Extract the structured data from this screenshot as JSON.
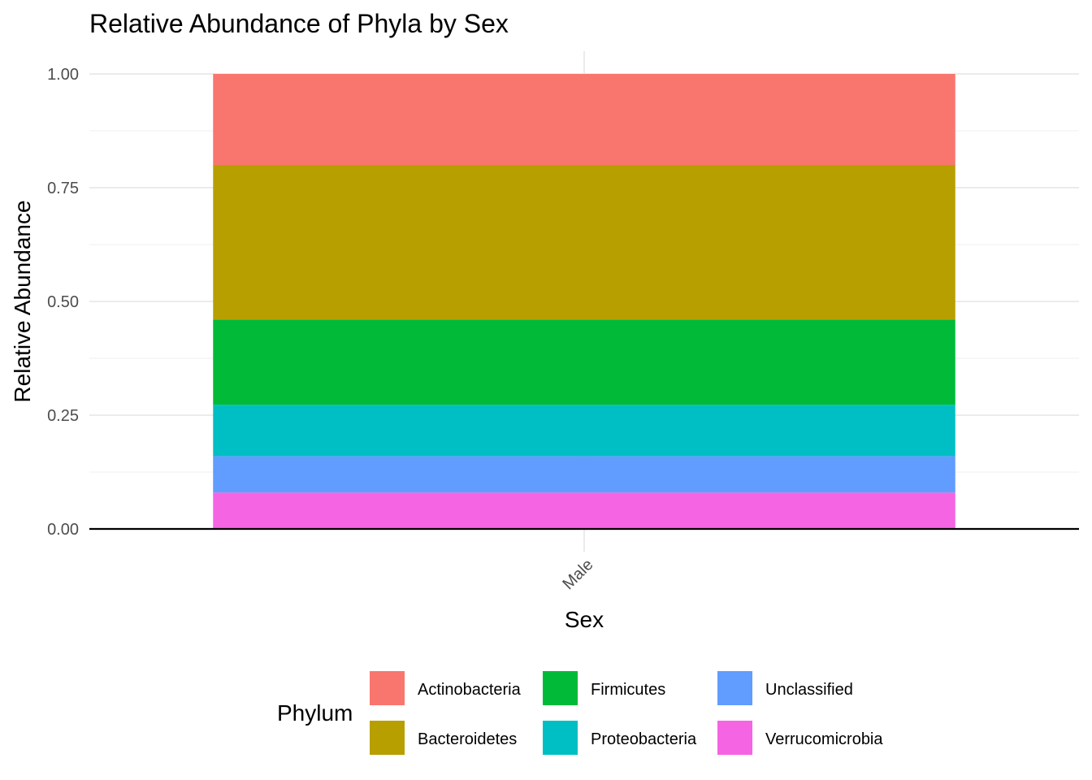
{
  "chart_data": {
    "type": "bar",
    "stacked": true,
    "title": "Relative Abundance of Phyla by Sex",
    "xlabel": "Sex",
    "ylabel": "Relative Abundance",
    "categories": [
      "Male"
    ],
    "ylim": [
      0,
      1
    ],
    "yticks": [
      "0.00",
      "0.25",
      "0.50",
      "0.75",
      "1.00"
    ],
    "grid": true,
    "legend": {
      "title": "Phylum",
      "position": "bottom"
    },
    "series": [
      {
        "name": "Verrucomicrobia",
        "values": [
          0.08
        ],
        "color": "#F564E3"
      },
      {
        "name": "Unclassified",
        "values": [
          0.08
        ],
        "color": "#619CFF"
      },
      {
        "name": "Proteobacteria",
        "values": [
          0.113
        ],
        "color": "#00BFC4"
      },
      {
        "name": "Firmicutes",
        "values": [
          0.187
        ],
        "color": "#00BA38"
      },
      {
        "name": "Bacteroidetes",
        "values": [
          0.34
        ],
        "color": "#B79F00"
      },
      {
        "name": "Actinobacteria",
        "values": [
          0.2
        ],
        "color": "#F8766D"
      }
    ],
    "legend_order": [
      "Actinobacteria",
      "Bacteroidetes",
      "Firmicutes",
      "Proteobacteria",
      "Unclassified",
      "Verrucomicrobia"
    ]
  }
}
